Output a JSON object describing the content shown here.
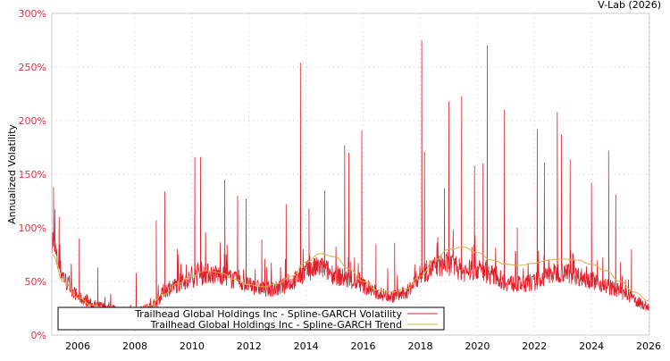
{
  "chart_data": {
    "type": "line",
    "title": "V-Lab (2026)",
    "xlabel": "",
    "ylabel": "Annualized Volatility",
    "xlim": [
      2005.09,
      2026.03
    ],
    "ylim": [
      0,
      300
    ],
    "grid": true,
    "x_ticks": [
      2006,
      2008,
      2010,
      2012,
      2014,
      2016,
      2018,
      2020,
      2022,
      2024,
      2026
    ],
    "x_tick_labels": [
      "2006",
      "2008",
      "2010",
      "2012",
      "2014",
      "2016",
      "2018",
      "2020",
      "2022",
      "2024",
      "2026"
    ],
    "y_ticks": [
      0,
      50,
      100,
      150,
      200,
      250,
      300
    ],
    "y_tick_labels": [
      "0%",
      "50%",
      "100%",
      "150%",
      "200%",
      "250%",
      "300%"
    ],
    "legend_position": "bottom-left",
    "colors": {
      "volatility": "#e0202a",
      "trend": "#d4b040",
      "ticks": "#dd3344"
    },
    "series": [
      {
        "name": "Trailhead Global Holdings Inc - Spline-GARCH Volatility",
        "baseline": [
          [
            2005.1,
            90
          ],
          [
            2005.3,
            65
          ],
          [
            2005.6,
            48
          ],
          [
            2006,
            35
          ],
          [
            2006.5,
            28
          ],
          [
            2007,
            25
          ],
          [
            2007.5,
            23
          ],
          [
            2008,
            22
          ],
          [
            2008.5,
            25
          ],
          [
            2008.8,
            30
          ],
          [
            2009,
            40
          ],
          [
            2009.5,
            46
          ],
          [
            2010,
            52
          ],
          [
            2010.5,
            56
          ],
          [
            2011,
            55
          ],
          [
            2011.5,
            50
          ],
          [
            2012,
            45
          ],
          [
            2012.5,
            42
          ],
          [
            2013,
            42
          ],
          [
            2013.5,
            48
          ],
          [
            2014,
            58
          ],
          [
            2014.5,
            62
          ],
          [
            2015,
            55
          ],
          [
            2015.5,
            50
          ],
          [
            2016,
            45
          ],
          [
            2016.5,
            38
          ],
          [
            2017,
            35
          ],
          [
            2017.5,
            38
          ],
          [
            2018,
            55
          ],
          [
            2018.5,
            62
          ],
          [
            2019,
            65
          ],
          [
            2019.5,
            58
          ],
          [
            2020,
            60
          ],
          [
            2020.5,
            55
          ],
          [
            2021,
            48
          ],
          [
            2021.5,
            46
          ],
          [
            2022,
            48
          ],
          [
            2022.5,
            55
          ],
          [
            2023,
            58
          ],
          [
            2023.5,
            54
          ],
          [
            2024,
            50
          ],
          [
            2024.5,
            45
          ],
          [
            2025,
            40
          ],
          [
            2025.5,
            32
          ],
          [
            2026,
            25
          ]
        ],
        "spikes": [
          [
            2005.15,
            138
          ],
          [
            2005.35,
            110
          ],
          [
            2006.05,
            90
          ],
          [
            2006.7,
            63
          ],
          [
            2008.05,
            58
          ],
          [
            2008.75,
            107
          ],
          [
            2009.05,
            134
          ],
          [
            2010.1,
            166
          ],
          [
            2010.3,
            166
          ],
          [
            2011.15,
            145
          ],
          [
            2011.6,
            130
          ],
          [
            2011.9,
            127
          ],
          [
            2012.45,
            89
          ],
          [
            2013.3,
            122
          ],
          [
            2013.8,
            254
          ],
          [
            2014.1,
            118
          ],
          [
            2014.65,
            135
          ],
          [
            2015.35,
            177
          ],
          [
            2015.5,
            170
          ],
          [
            2015.95,
            191
          ],
          [
            2016.45,
            85
          ],
          [
            2017.1,
            86
          ],
          [
            2018.05,
            275
          ],
          [
            2018.15,
            171
          ],
          [
            2018.85,
            137
          ],
          [
            2019.0,
            218
          ],
          [
            2019.45,
            223
          ],
          [
            2019.9,
            158
          ],
          [
            2020.2,
            160
          ],
          [
            2020.35,
            270
          ],
          [
            2020.95,
            210
          ],
          [
            2021.4,
            100
          ],
          [
            2022.1,
            192
          ],
          [
            2022.35,
            161
          ],
          [
            2022.8,
            208
          ],
          [
            2022.95,
            187
          ],
          [
            2023.25,
            164
          ],
          [
            2024.0,
            142
          ],
          [
            2024.6,
            172
          ],
          [
            2024.85,
            131
          ],
          [
            2025.4,
            80
          ]
        ]
      },
      {
        "name": "Trailhead Global Holdings Inc - Spline-GARCH Trend",
        "points": [
          [
            2005.1,
            75
          ],
          [
            2005.5,
            50
          ],
          [
            2006,
            35
          ],
          [
            2006.5,
            28
          ],
          [
            2007,
            25
          ],
          [
            2008,
            24
          ],
          [
            2008.5,
            27
          ],
          [
            2009,
            38
          ],
          [
            2009.5,
            48
          ],
          [
            2010,
            55
          ],
          [
            2010.5,
            60
          ],
          [
            2011,
            58
          ],
          [
            2011.5,
            52
          ],
          [
            2012,
            47
          ],
          [
            2012.5,
            45
          ],
          [
            2013,
            48
          ],
          [
            2013.5,
            55
          ],
          [
            2014,
            68
          ],
          [
            2014.5,
            76
          ],
          [
            2015,
            73
          ],
          [
            2015.5,
            62
          ],
          [
            2016,
            50
          ],
          [
            2016.5,
            42
          ],
          [
            2017,
            40
          ],
          [
            2017.5,
            43
          ],
          [
            2018,
            55
          ],
          [
            2018.5,
            70
          ],
          [
            2019,
            80
          ],
          [
            2019.5,
            82
          ],
          [
            2020,
            77
          ],
          [
            2020.5,
            70
          ],
          [
            2021,
            66
          ],
          [
            2021.5,
            65
          ],
          [
            2022,
            67
          ],
          [
            2022.5,
            70
          ],
          [
            2023,
            71
          ],
          [
            2023.5,
            70
          ],
          [
            2024,
            66
          ],
          [
            2024.5,
            60
          ],
          [
            2025,
            50
          ],
          [
            2025.5,
            40
          ],
          [
            2026,
            32
          ]
        ]
      }
    ]
  }
}
